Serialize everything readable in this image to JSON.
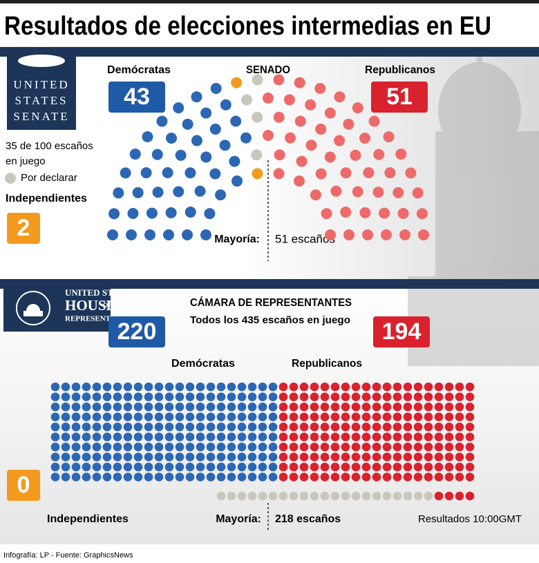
{
  "header": {
    "title": "Resultados de elecciones intermedias en EU"
  },
  "senate": {
    "logo": [
      "UNITED",
      "STATES",
      "SENATE"
    ],
    "chamber": "SENADO",
    "in_play": [
      "35 de 100 escaños",
      "en juego"
    ],
    "pending_label": "Por declarar",
    "democrats": {
      "label": "Demócratas",
      "seats": 43,
      "color": "#2c67b4"
    },
    "republicans": {
      "label": "Republicanos",
      "seats": 51,
      "color": "#ee6a6a"
    },
    "independents": {
      "label": "Independientes",
      "seats": 2,
      "color": "#f39a1e"
    },
    "pending": {
      "seats": 4,
      "color": "#c9c7bb"
    },
    "majority_label": "Mayoría:",
    "majority": "51 escaños"
  },
  "house": {
    "logo": [
      "UNITED STATES",
      "HOUSE",
      "of",
      "REPRESENTATIVES"
    ],
    "chamber": "CÁMARA DE REPRESENTANTES",
    "in_play": "Todos los 435 escaños en juego",
    "democrats": {
      "label": "Demócratas",
      "seats": 220,
      "color": "#2c67b4"
    },
    "republicans": {
      "label": "Republicanos",
      "seats": 194,
      "color": "#d9222e"
    },
    "independents": {
      "label": "Independientes",
      "seats": 0,
      "color": "#f39a1e"
    },
    "pending": {
      "seats": 21,
      "color": "#c9c7bb"
    },
    "majority_label": "Mayoría:",
    "majority": "218 escaños"
  },
  "footer": {
    "results_time": "Resultados 10:00GMT",
    "credit": "Infografía: LP  - Fuente: GraphicsNews"
  }
}
